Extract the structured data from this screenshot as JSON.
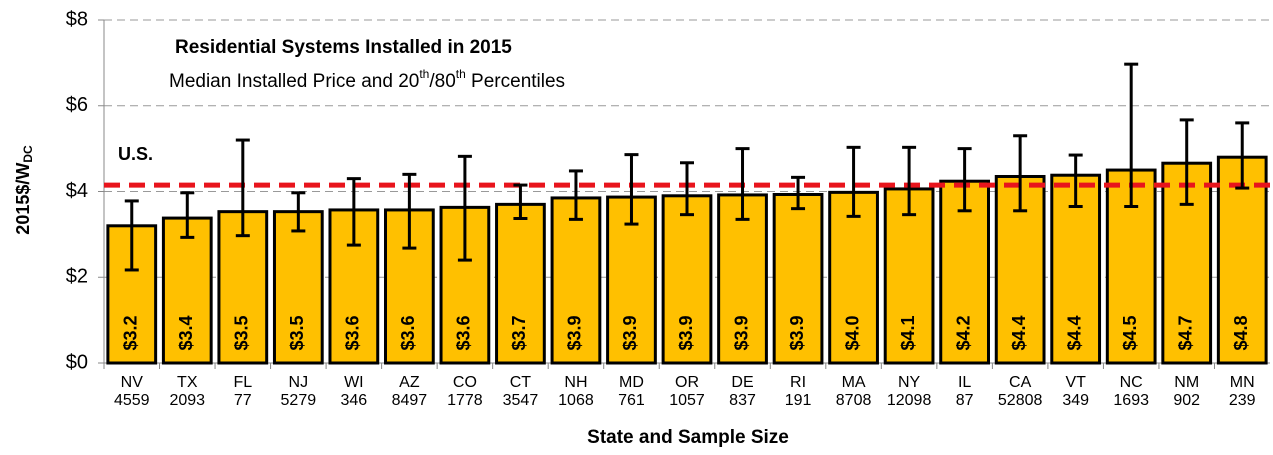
{
  "chart_data": {
    "type": "bar",
    "title": "Residential Systems Installed in 2015",
    "subtitle": [
      "Median Installed Price and 20",
      "th",
      "/80",
      "th",
      " Percentiles"
    ],
    "ylabel": [
      "2015$/W",
      "DC"
    ],
    "xlabel": "State and Sample Size",
    "categories": [
      "NV",
      "TX",
      "FL",
      "NJ",
      "WI",
      "AZ",
      "CO",
      "CT",
      "NH",
      "MD",
      "OR",
      "DE",
      "RI",
      "MA",
      "NY",
      "IL",
      "CA",
      "VT",
      "NC",
      "NM",
      "MN"
    ],
    "sample_sizes": [
      4559,
      2093,
      77,
      5279,
      346,
      8497,
      1778,
      3547,
      1068,
      761,
      1057,
      837,
      191,
      8708,
      12098,
      87,
      52808,
      349,
      1693,
      902,
      239
    ],
    "values": [
      3.2,
      3.38,
      3.53,
      3.53,
      3.57,
      3.57,
      3.63,
      3.7,
      3.85,
      3.87,
      3.9,
      3.92,
      3.93,
      3.98,
      4.06,
      4.24,
      4.35,
      4.38,
      4.5,
      4.66,
      4.8
    ],
    "value_labels": [
      "$3.2",
      "$3.4",
      "$3.5",
      "$3.5",
      "$3.6",
      "$3.6",
      "$3.6",
      "$3.7",
      "$3.9",
      "$3.9",
      "$3.9",
      "$3.9",
      "$3.9",
      "$4.0",
      "$4.1",
      "$4.2",
      "$4.4",
      "$4.4",
      "$4.5",
      "$4.7",
      "$4.8"
    ],
    "p20": [
      2.17,
      2.93,
      2.97,
      3.08,
      2.75,
      2.68,
      2.4,
      3.37,
      3.35,
      3.24,
      3.46,
      3.35,
      3.6,
      3.42,
      3.46,
      3.55,
      3.55,
      3.65,
      3.65,
      3.7,
      4.08
    ],
    "p80": [
      3.78,
      3.97,
      5.2,
      3.97,
      4.3,
      4.4,
      4.82,
      4.15,
      4.48,
      4.86,
      4.67,
      5.0,
      4.33,
      5.03,
      5.03,
      5.0,
      5.3,
      4.85,
      6.97,
      5.67,
      5.6
    ],
    "color": "#FFC000",
    "ylim": [
      0,
      8
    ],
    "yticks": [
      {
        "value": 0,
        "label": "$0"
      },
      {
        "value": 2,
        "label": "$2"
      },
      {
        "value": 4,
        "label": "$4"
      },
      {
        "value": 6,
        "label": "$6"
      },
      {
        "value": 8,
        "label": "$8"
      }
    ],
    "grid": true,
    "reference": {
      "label": "U.S.",
      "value": 4.15,
      "color": "#e8141c"
    }
  }
}
